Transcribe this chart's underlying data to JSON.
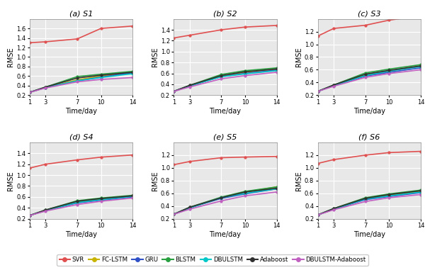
{
  "x": [
    1,
    3,
    7,
    10,
    14
  ],
  "subplots": [
    {
      "label": "(a) S1",
      "ylim": [
        0.2,
        1.8
      ],
      "yticks": [
        0.2,
        0.4,
        0.6,
        0.8,
        1.0,
        1.2,
        1.4,
        1.6
      ],
      "series": {
        "SVR": [
          1.3,
          1.32,
          1.38,
          1.6,
          1.65
        ],
        "FC-LSTM": [
          0.26,
          0.36,
          0.52,
          0.6,
          0.68
        ],
        "GRU": [
          0.26,
          0.36,
          0.5,
          0.58,
          0.67
        ],
        "BLSTM": [
          0.26,
          0.37,
          0.59,
          0.64,
          0.7
        ],
        "DBULSTM": [
          0.26,
          0.36,
          0.5,
          0.57,
          0.65
        ],
        "Adaboost": [
          0.26,
          0.37,
          0.56,
          0.62,
          0.68
        ],
        "DBULSTM-Adaboost": [
          0.26,
          0.35,
          0.48,
          0.53,
          0.57
        ]
      }
    },
    {
      "label": "(b) S2",
      "ylim": [
        0.2,
        1.6
      ],
      "yticks": [
        0.2,
        0.4,
        0.6,
        0.8,
        1.0,
        1.2,
        1.4
      ],
      "series": {
        "SVR": [
          1.25,
          1.3,
          1.4,
          1.45,
          1.48
        ],
        "FC-LSTM": [
          0.27,
          0.37,
          0.55,
          0.62,
          0.68
        ],
        "GRU": [
          0.27,
          0.37,
          0.54,
          0.6,
          0.66
        ],
        "BLSTM": [
          0.27,
          0.38,
          0.58,
          0.65,
          0.7
        ],
        "DBULSTM": [
          0.27,
          0.37,
          0.54,
          0.59,
          0.65
        ],
        "Adaboost": [
          0.27,
          0.38,
          0.56,
          0.63,
          0.68
        ],
        "DBULSTM-Adaboost": [
          0.27,
          0.35,
          0.5,
          0.56,
          0.62
        ]
      }
    },
    {
      "label": "(c) S3",
      "ylim": [
        0.2,
        1.4
      ],
      "yticks": [
        0.2,
        0.4,
        0.6,
        0.8,
        1.0,
        1.2
      ],
      "series": {
        "SVR": [
          1.13,
          1.25,
          1.3,
          1.38,
          1.45
        ],
        "FC-LSTM": [
          0.26,
          0.35,
          0.52,
          0.58,
          0.66
        ],
        "GRU": [
          0.26,
          0.35,
          0.5,
          0.56,
          0.63
        ],
        "BLSTM": [
          0.26,
          0.36,
          0.55,
          0.61,
          0.68
        ],
        "DBULSTM": [
          0.26,
          0.35,
          0.51,
          0.58,
          0.65
        ],
        "Adaboost": [
          0.26,
          0.36,
          0.53,
          0.59,
          0.66
        ],
        "DBULSTM-Adaboost": [
          0.26,
          0.34,
          0.48,
          0.54,
          0.6
        ]
      }
    },
    {
      "label": "(d) S4",
      "ylim": [
        0.2,
        1.6
      ],
      "yticks": [
        0.2,
        0.4,
        0.6,
        0.8,
        1.0,
        1.2,
        1.4
      ],
      "series": {
        "SVR": [
          1.13,
          1.2,
          1.28,
          1.33,
          1.37
        ],
        "FC-LSTM": [
          0.26,
          0.35,
          0.5,
          0.56,
          0.62
        ],
        "GRU": [
          0.26,
          0.35,
          0.49,
          0.54,
          0.6
        ],
        "BLSTM": [
          0.26,
          0.36,
          0.53,
          0.58,
          0.63
        ],
        "DBULSTM": [
          0.26,
          0.35,
          0.5,
          0.55,
          0.61
        ],
        "Adaboost": [
          0.26,
          0.36,
          0.52,
          0.57,
          0.62
        ],
        "DBULSTM-Adaboost": [
          0.26,
          0.34,
          0.46,
          0.52,
          0.58
        ]
      }
    },
    {
      "label": "(e) S5",
      "ylim": [
        0.2,
        1.4
      ],
      "yticks": [
        0.2,
        0.4,
        0.6,
        0.8,
        1.0,
        1.2
      ],
      "series": {
        "SVR": [
          1.05,
          1.1,
          1.16,
          1.17,
          1.18
        ],
        "FC-LSTM": [
          0.27,
          0.37,
          0.53,
          0.62,
          0.7
        ],
        "GRU": [
          0.27,
          0.37,
          0.52,
          0.59,
          0.67
        ],
        "BLSTM": [
          0.27,
          0.38,
          0.54,
          0.63,
          0.7
        ],
        "DBULSTM": [
          0.27,
          0.37,
          0.53,
          0.6,
          0.67
        ],
        "Adaboost": [
          0.27,
          0.38,
          0.53,
          0.62,
          0.68
        ],
        "DBULSTM-Adaboost": [
          0.27,
          0.35,
          0.48,
          0.56,
          0.62
        ]
      }
    },
    {
      "label": "(f) S6",
      "ylim": [
        0.2,
        1.4
      ],
      "yticks": [
        0.2,
        0.4,
        0.6,
        0.8,
        1.0,
        1.2
      ],
      "series": {
        "SVR": [
          1.07,
          1.13,
          1.2,
          1.24,
          1.26
        ],
        "FC-LSTM": [
          0.26,
          0.35,
          0.51,
          0.57,
          0.63
        ],
        "GRU": [
          0.26,
          0.35,
          0.5,
          0.55,
          0.61
        ],
        "BLSTM": [
          0.26,
          0.36,
          0.53,
          0.59,
          0.65
        ],
        "DBULSTM": [
          0.26,
          0.35,
          0.51,
          0.56,
          0.62
        ],
        "Adaboost": [
          0.26,
          0.36,
          0.52,
          0.58,
          0.64
        ],
        "DBULSTM-Adaboost": [
          0.26,
          0.34,
          0.47,
          0.53,
          0.58
        ]
      }
    }
  ],
  "series_colors": {
    "SVR": "#e05050",
    "FC-LSTM": "#c8b400",
    "GRU": "#3050c8",
    "BLSTM": "#28a040",
    "DBULSTM": "#00c8c8",
    "Adaboost": "#303030",
    "DBULSTM-Adaboost": "#c060c0"
  },
  "xticks": [
    1,
    3,
    7,
    10,
    14
  ],
  "xlabel": "Time/day",
  "ylabel": "RMSE",
  "plot_bg": "#e8e8e8",
  "grid_color": "#ffffff",
  "figure_bg": "#ffffff"
}
